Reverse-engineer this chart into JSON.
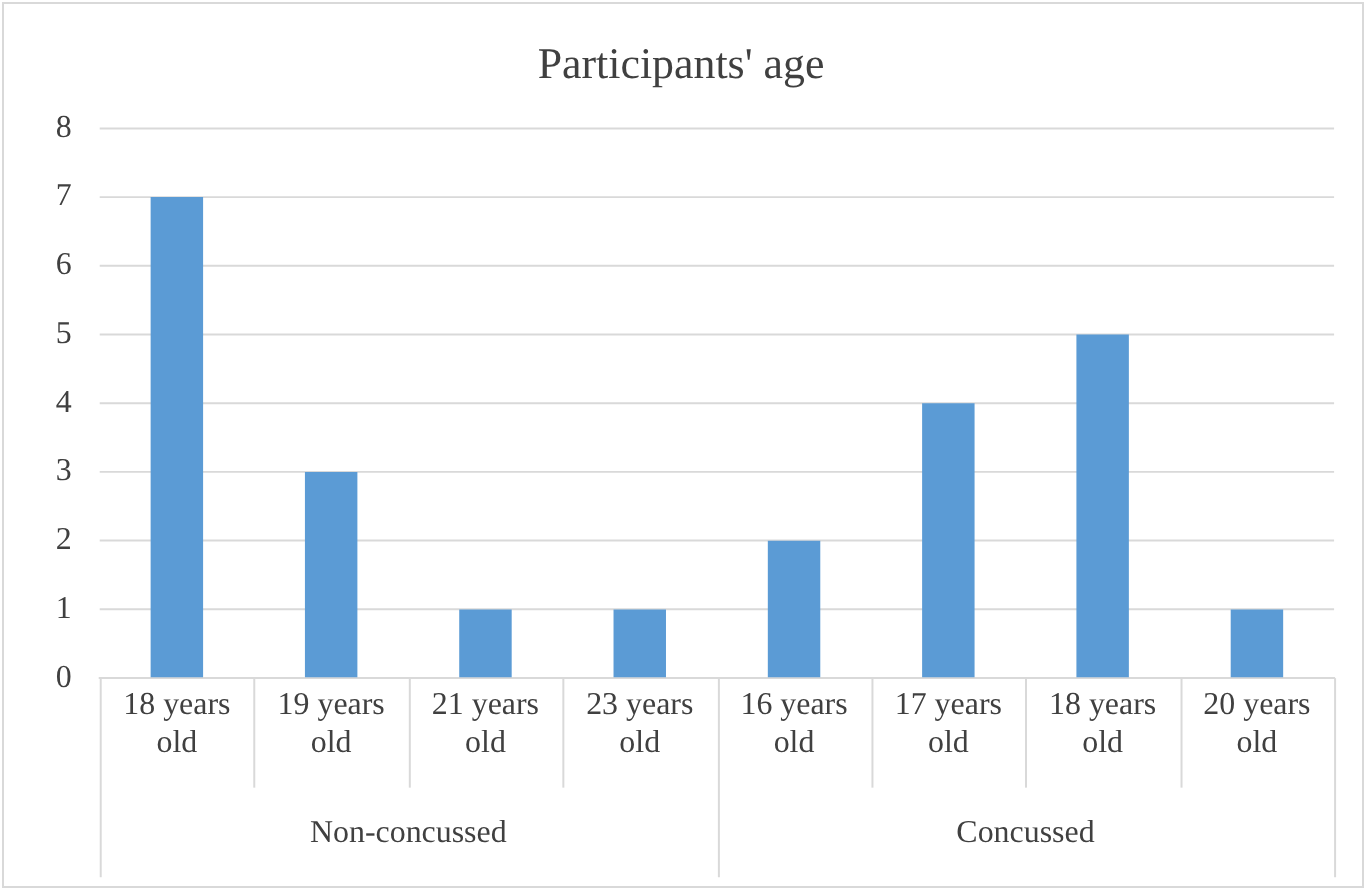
{
  "chart_data": {
    "type": "bar",
    "title": "Participants' age",
    "categories": [
      "18 years old",
      "19 years old",
      "21 years old",
      "23 years old",
      "16 years old",
      "17 years old",
      "18 years old",
      "20 years old"
    ],
    "values": [
      7,
      3,
      1,
      1,
      2,
      4,
      5,
      1
    ],
    "color": "#5b9bd5",
    "ylim": [
      0,
      8
    ],
    "yticks": [
      0,
      1,
      2,
      3,
      4,
      5,
      6,
      7,
      8
    ],
    "grid": "y",
    "annotations": [
      "Non-concussed",
      "Concussed"
    ]
  }
}
